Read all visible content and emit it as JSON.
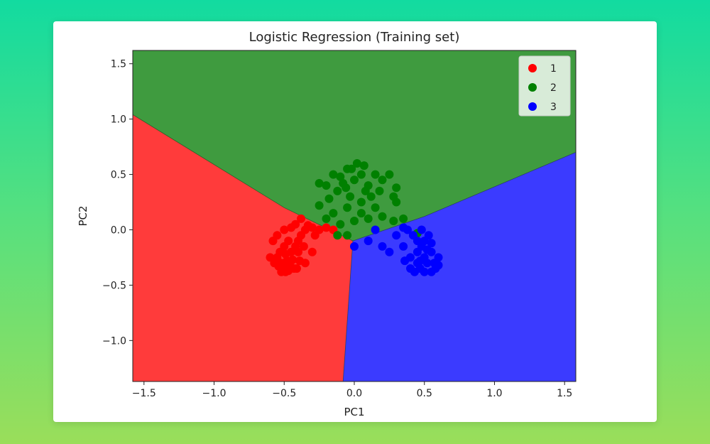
{
  "chart_data": {
    "type": "scatter",
    "title": "Logistic Regression (Training set)",
    "xlabel": "PC1",
    "ylabel": "PC2",
    "xlim": [
      -1.58,
      1.58
    ],
    "ylim": [
      -1.37,
      1.62
    ],
    "x_ticks": [
      {
        "value": -1.5,
        "label": "−1.5"
      },
      {
        "value": -1.0,
        "label": "−1.0"
      },
      {
        "value": -0.5,
        "label": "−0.5"
      },
      {
        "value": 0.0,
        "label": "0.0"
      },
      {
        "value": 0.5,
        "label": "0.5"
      },
      {
        "value": 1.0,
        "label": "1.0"
      },
      {
        "value": 1.5,
        "label": "1.5"
      }
    ],
    "y_ticks": [
      {
        "value": -1.0,
        "label": "−1.0"
      },
      {
        "value": -0.5,
        "label": "−0.5"
      },
      {
        "value": 0.0,
        "label": "0.0"
      },
      {
        "value": 0.5,
        "label": "0.5"
      },
      {
        "value": 1.0,
        "label": "1.0"
      },
      {
        "value": 1.5,
        "label": "1.5"
      }
    ],
    "legend_position": "top-right",
    "decision_regions": [
      {
        "name": "1",
        "color": "#ff3b3b",
        "polygon": [
          [
            -1.58,
            -1.37
          ],
          [
            -0.08,
            -1.37
          ],
          [
            -0.01,
            -0.1
          ],
          [
            -0.5,
            0.2
          ],
          [
            -1.58,
            1.04
          ]
        ]
      },
      {
        "name": "2",
        "color": "#3f9b3f",
        "polygon": [
          [
            -1.58,
            1.04
          ],
          [
            -0.5,
            0.2
          ],
          [
            -0.01,
            -0.1
          ],
          [
            0.5,
            0.12
          ],
          [
            1.58,
            0.7
          ],
          [
            1.58,
            1.62
          ],
          [
            -1.58,
            1.62
          ]
        ]
      },
      {
        "name": "3",
        "color": "#3b3bff",
        "polygon": [
          [
            -0.01,
            -0.1
          ],
          [
            0.5,
            0.12
          ],
          [
            1.58,
            0.7
          ],
          [
            1.58,
            -1.37
          ],
          [
            -0.08,
            -1.37
          ]
        ]
      }
    ],
    "series": [
      {
        "name": "1",
        "color": "#ff0000",
        "points": [
          [
            -0.55,
            -0.25
          ],
          [
            -0.52,
            -0.3
          ],
          [
            -0.5,
            -0.35
          ],
          [
            -0.48,
            -0.28
          ],
          [
            -0.53,
            -0.2
          ],
          [
            -0.49,
            -0.22
          ],
          [
            -0.46,
            -0.32
          ],
          [
            -0.44,
            -0.27
          ],
          [
            -0.57,
            -0.3
          ],
          [
            -0.5,
            -0.15
          ],
          [
            -0.45,
            -0.2
          ],
          [
            -0.42,
            -0.15
          ],
          [
            -0.4,
            -0.1
          ],
          [
            -0.38,
            -0.05
          ],
          [
            -0.35,
            0.0
          ],
          [
            -0.3,
            0.02
          ],
          [
            -0.25,
            0.0
          ],
          [
            -0.2,
            0.02
          ],
          [
            -0.42,
            0.05
          ],
          [
            -0.38,
            0.1
          ],
          [
            -0.33,
            0.04
          ],
          [
            -0.28,
            -0.05
          ],
          [
            -0.36,
            -0.15
          ],
          [
            -0.4,
            -0.2
          ],
          [
            -0.47,
            -0.1
          ],
          [
            -0.55,
            -0.05
          ],
          [
            -0.58,
            -0.1
          ],
          [
            -0.52,
            -0.38
          ],
          [
            -0.47,
            -0.37
          ],
          [
            -0.43,
            -0.35
          ],
          [
            -0.6,
            -0.25
          ],
          [
            -0.35,
            -0.3
          ],
          [
            -0.3,
            -0.2
          ],
          [
            -0.15,
            0.0
          ],
          [
            -0.5,
            0.0
          ],
          [
            -0.45,
            0.02
          ],
          [
            -0.41,
            -0.35
          ],
          [
            -0.54,
            -0.33
          ],
          [
            -0.49,
            -0.38
          ],
          [
            -0.39,
            -0.28
          ]
        ]
      },
      {
        "name": "2",
        "color": "#008000",
        "points": [
          [
            0.02,
            0.6
          ],
          [
            0.05,
            0.5
          ],
          [
            0.0,
            0.45
          ],
          [
            -0.05,
            0.55
          ],
          [
            0.1,
            0.4
          ],
          [
            0.08,
            0.35
          ],
          [
            -0.1,
            0.48
          ],
          [
            -0.15,
            0.5
          ],
          [
            -0.2,
            0.4
          ],
          [
            -0.25,
            0.42
          ],
          [
            -0.12,
            0.35
          ],
          [
            -0.03,
            0.3
          ],
          [
            0.12,
            0.3
          ],
          [
            0.2,
            0.45
          ],
          [
            0.25,
            0.5
          ],
          [
            0.3,
            0.38
          ],
          [
            0.28,
            0.3
          ],
          [
            0.3,
            0.25
          ],
          [
            0.15,
            0.2
          ],
          [
            0.05,
            0.15
          ],
          [
            -0.05,
            0.2
          ],
          [
            -0.15,
            0.15
          ],
          [
            -0.25,
            0.22
          ],
          [
            -0.2,
            0.1
          ],
          [
            -0.1,
            0.05
          ],
          [
            0.0,
            0.08
          ],
          [
            0.1,
            0.1
          ],
          [
            0.2,
            0.12
          ],
          [
            0.28,
            0.08
          ],
          [
            0.05,
            0.25
          ],
          [
            -0.06,
            0.38
          ],
          [
            0.15,
            0.5
          ],
          [
            -0.18,
            0.28
          ],
          [
            0.35,
            0.1
          ],
          [
            -0.02,
            0.55
          ],
          [
            0.07,
            0.58
          ],
          [
            -0.08,
            0.42
          ],
          [
            0.18,
            0.35
          ],
          [
            -0.12,
            -0.05
          ],
          [
            -0.05,
            -0.05
          ],
          [
            0.45,
            -0.03
          ]
        ]
      },
      {
        "name": "3",
        "color": "#0000ff",
        "points": [
          [
            0.45,
            -0.2
          ],
          [
            0.5,
            -0.25
          ],
          [
            0.48,
            -0.15
          ],
          [
            0.55,
            -0.2
          ],
          [
            0.52,
            -0.3
          ],
          [
            0.47,
            -0.35
          ],
          [
            0.58,
            -0.35
          ],
          [
            0.5,
            -0.1
          ],
          [
            0.42,
            -0.05
          ],
          [
            0.38,
            0.0
          ],
          [
            0.35,
            -0.15
          ],
          [
            0.4,
            -0.25
          ],
          [
            0.45,
            -0.3
          ],
          [
            0.55,
            -0.12
          ],
          [
            0.6,
            -0.25
          ],
          [
            0.53,
            -0.05
          ],
          [
            0.48,
            0.0
          ],
          [
            0.3,
            -0.05
          ],
          [
            0.25,
            -0.2
          ],
          [
            0.2,
            -0.15
          ],
          [
            0.15,
            0.0
          ],
          [
            0.1,
            -0.1
          ],
          [
            0.0,
            -0.15
          ],
          [
            0.35,
            0.02
          ],
          [
            0.43,
            -0.38
          ],
          [
            0.5,
            -0.38
          ],
          [
            0.57,
            -0.3
          ],
          [
            0.45,
            -0.1
          ],
          [
            0.4,
            -0.35
          ],
          [
            0.6,
            -0.32
          ],
          [
            0.52,
            -0.18
          ],
          [
            0.47,
            -0.28
          ],
          [
            0.36,
            -0.28
          ],
          [
            0.55,
            -0.38
          ]
        ]
      }
    ]
  }
}
